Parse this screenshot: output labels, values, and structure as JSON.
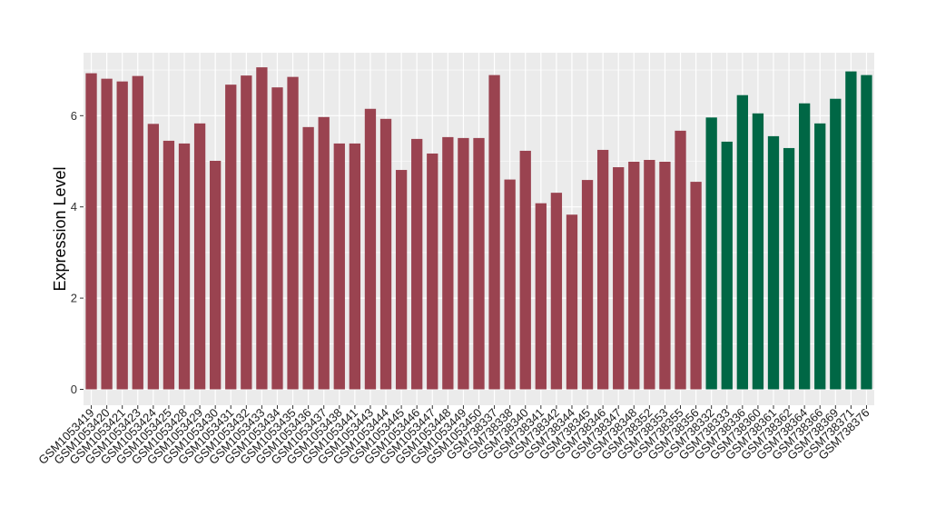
{
  "chart_data": {
    "type": "bar",
    "ylabel": "Expression Level",
    "xlabel": "",
    "ylim": [
      0,
      7.25
    ],
    "yticks": [
      0,
      2,
      4,
      6
    ],
    "grid": true,
    "colors": {
      "group1": "#9a4350",
      "group2": "#006745",
      "panel": "#ebebeb",
      "grid": "#ffffff"
    },
    "categories": [
      "GSM1053419",
      "GSM1053420",
      "GSM1053421",
      "GSM1053423",
      "GSM1053424",
      "GSM1053425",
      "GSM1053428",
      "GSM1053429",
      "GSM1053430",
      "GSM1053431",
      "GSM1053432",
      "GSM1053433",
      "GSM1053434",
      "GSM1053435",
      "GSM1053436",
      "GSM1053437",
      "GSM1053438",
      "GSM1053441",
      "GSM1053443",
      "GSM1053444",
      "GSM1053445",
      "GSM1053446",
      "GSM1053447",
      "GSM1053448",
      "GSM1053449",
      "GSM1053450",
      "GSM738337",
      "GSM738338",
      "GSM738340",
      "GSM738341",
      "GSM738342",
      "GSM738344",
      "GSM738345",
      "GSM738346",
      "GSM738347",
      "GSM738348",
      "GSM738352",
      "GSM738353",
      "GSM738355",
      "GSM738356",
      "GSM738332",
      "GSM738333",
      "GSM738336",
      "GSM738360",
      "GSM738361",
      "GSM738362",
      "GSM738364",
      "GSM738366",
      "GSM738369",
      "GSM738371",
      "GSM738376"
    ],
    "values": [
      6.93,
      6.81,
      6.75,
      6.87,
      5.82,
      5.45,
      5.39,
      5.83,
      5.01,
      6.68,
      6.88,
      7.06,
      6.62,
      6.85,
      5.75,
      5.97,
      5.39,
      5.39,
      6.15,
      5.93,
      4.81,
      5.49,
      5.17,
      5.53,
      5.51,
      5.51,
      6.89,
      4.6,
      5.23,
      4.08,
      4.31,
      3.83,
      4.59,
      5.25,
      4.87,
      4.99,
      5.03,
      4.99,
      5.67,
      4.55,
      5.96,
      5.43,
      6.45,
      6.05,
      5.55,
      5.29,
      6.27,
      5.83,
      6.37,
      6.97,
      6.89
    ],
    "group_sizes": [
      40,
      11
    ]
  }
}
